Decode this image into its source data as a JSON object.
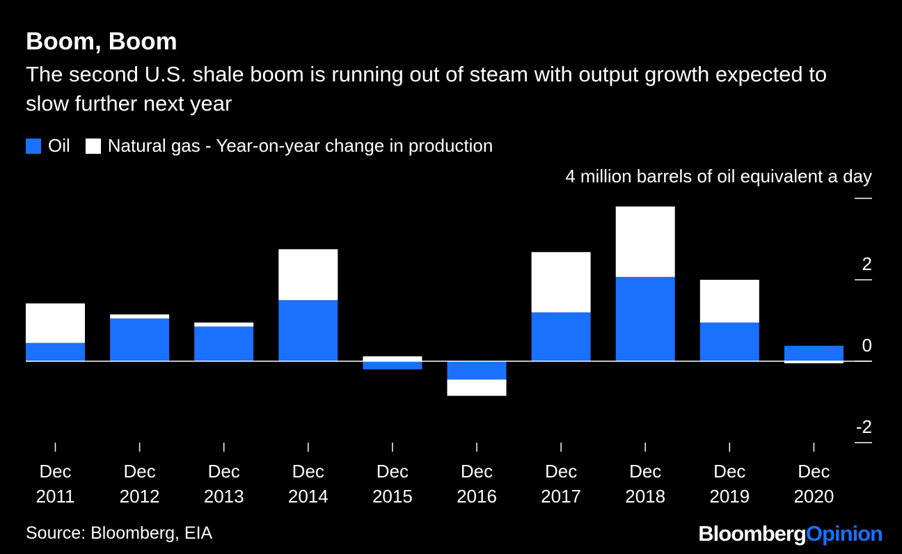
{
  "colors": {
    "oil": "#1a70ff",
    "gas": "#ffffff",
    "background": "#000000",
    "axis": "#ffffff"
  },
  "header": {
    "title": "Boom, Boom",
    "subtitle": "The second U.S. shale boom is running out of steam with output growth expected to slow further next year"
  },
  "legend": {
    "oil": "Oil",
    "gas": "Natural gas - Year-on-year change in production"
  },
  "unit_label": "4 million barrels of oil equivalent a day",
  "chart_data": {
    "type": "bar",
    "stacked": true,
    "categories": [
      "Dec 2011",
      "Dec 2012",
      "Dec 2013",
      "Dec 2014",
      "Dec 2015",
      "Dec 2016",
      "Dec 2017",
      "Dec 2018",
      "Dec 2019",
      "Dec 2020"
    ],
    "series": [
      {
        "name": "Oil",
        "color": "#1a70ff",
        "values": [
          0.45,
          1.05,
          0.85,
          1.5,
          -0.2,
          -0.45,
          1.2,
          2.07,
          0.95,
          0.38
        ]
      },
      {
        "name": "Natural gas",
        "color": "#ffffff",
        "values": [
          0.97,
          0.1,
          0.1,
          1.25,
          0.12,
          -0.4,
          1.48,
          1.73,
          1.05,
          -0.05
        ]
      }
    ],
    "ylim": [
      -2,
      4
    ],
    "yticks": [
      "4",
      "2",
      "0",
      "-2"
    ],
    "y_axis_position": "right",
    "legend_position": "top-left",
    "grid": false
  },
  "footer": {
    "source": "Source: Bloomberg, EIA",
    "brand_part1": "Bloomberg",
    "brand_part2": "Opinion"
  }
}
